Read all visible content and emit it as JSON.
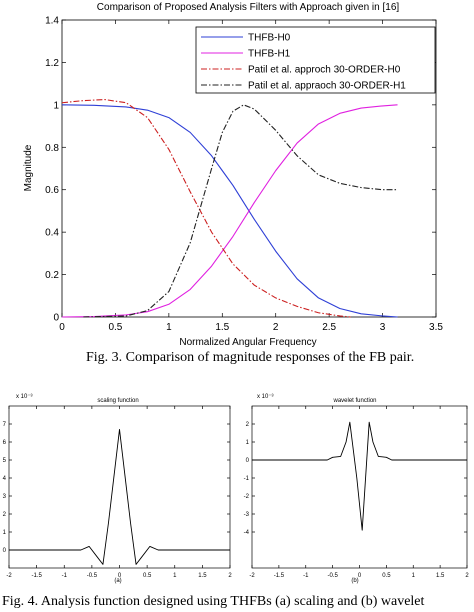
{
  "chart_data": [
    {
      "type": "line",
      "title": "Comparison of Proposed Analysis Filters with Approach given in [16]",
      "xlabel": "Normalized Angular Frequency",
      "ylabel": "Magnitude",
      "xlim": [
        0,
        3.5
      ],
      "ylim": [
        0,
        1.4
      ],
      "xticks": [
        "0",
        "0.5",
        "1",
        "1.5",
        "2",
        "2.5",
        "3",
        "3.5"
      ],
      "yticks": [
        "0",
        "0.2",
        "0.4",
        "0.6",
        "0.8",
        "1",
        "1.2",
        "1.4"
      ],
      "grid": false,
      "legend_position": "top-right",
      "series": [
        {
          "name": "THFB-H0",
          "color": "#2e3fd6",
          "dash": "solid",
          "x": [
            0,
            0.3,
            0.6,
            0.8,
            1.0,
            1.2,
            1.4,
            1.5,
            1.6,
            1.8,
            2.0,
            2.2,
            2.4,
            2.6,
            2.8,
            3.0,
            3.14
          ],
          "y": [
            1.0,
            0.998,
            0.99,
            0.975,
            0.94,
            0.87,
            0.76,
            0.69,
            0.62,
            0.46,
            0.31,
            0.18,
            0.09,
            0.04,
            0.015,
            0.005,
            0.0
          ]
        },
        {
          "name": "THFB-H1",
          "color": "#e020e0",
          "dash": "solid",
          "x": [
            0,
            0.3,
            0.6,
            0.8,
            1.0,
            1.2,
            1.4,
            1.5,
            1.6,
            1.8,
            2.0,
            2.2,
            2.4,
            2.6,
            2.8,
            3.0,
            3.14
          ],
          "y": [
            0.0,
            0.002,
            0.01,
            0.025,
            0.06,
            0.13,
            0.24,
            0.31,
            0.38,
            0.54,
            0.69,
            0.82,
            0.91,
            0.96,
            0.985,
            0.995,
            1.0
          ]
        },
        {
          "name": "Patil et al. approch 30-ORDER-H0",
          "color": "#cc2020",
          "dash": "dashdot",
          "x": [
            0,
            0.2,
            0.4,
            0.6,
            0.8,
            1.0,
            1.2,
            1.4,
            1.6,
            1.8,
            2.0,
            2.2,
            2.4,
            2.6,
            2.7
          ],
          "y": [
            1.01,
            1.02,
            1.025,
            1.01,
            0.94,
            0.79,
            0.59,
            0.4,
            0.25,
            0.15,
            0.09,
            0.05,
            0.02,
            0.005,
            0.0
          ]
        },
        {
          "name": "Patil et al. appraoch 30-ORDER-H1",
          "color": "#222222",
          "dash": "dashdot",
          "x": [
            0.2,
            0.6,
            0.8,
            1.0,
            1.2,
            1.4,
            1.5,
            1.6,
            1.7,
            1.8,
            2.0,
            2.2,
            2.4,
            2.6,
            2.8,
            3.0,
            3.14
          ],
          "y": [
            0.0,
            0.005,
            0.03,
            0.12,
            0.35,
            0.7,
            0.87,
            0.97,
            1.0,
            0.98,
            0.88,
            0.76,
            0.67,
            0.63,
            0.61,
            0.6,
            0.6
          ]
        }
      ]
    },
    {
      "type": "line",
      "title": "scaling function",
      "xlabel": "(a)",
      "ylabel": "",
      "multiplier": "x 10⁻³",
      "xlim": [
        -2,
        2
      ],
      "ylim": [
        -1,
        8
      ],
      "xticks": [
        "-2",
        "-1.5",
        "-1",
        "-0.5",
        "0",
        "0.5",
        "1",
        "1.5",
        "2"
      ],
      "yticks": [
        "0",
        "1",
        "2",
        "3",
        "4",
        "5",
        "6",
        "7"
      ],
      "series": [
        {
          "color": "#000000",
          "x": [
            -2,
            -0.7,
            -0.55,
            -0.4,
            -0.3,
            -0.2,
            0.0,
            0.2,
            0.3,
            0.4,
            0.55,
            0.7,
            2.0
          ],
          "y": [
            0.0,
            0.0,
            0.2,
            -0.4,
            -0.8,
            1.5,
            6.7,
            1.5,
            -0.8,
            -0.4,
            0.2,
            0.0,
            0.0
          ]
        }
      ]
    },
    {
      "type": "line",
      "title": "wavelet function",
      "xlabel": "(b)",
      "ylabel": "",
      "multiplier": "x 10⁻³",
      "xlim": [
        -2,
        2
      ],
      "ylim": [
        -6,
        3
      ],
      "xticks": [
        "-2",
        "-1.5",
        "-1",
        "-0.5",
        "0",
        "0.5",
        "1",
        "1.5",
        "2"
      ],
      "yticks": [
        "-4",
        "-3",
        "-2",
        "-1",
        "0",
        "1",
        "2"
      ],
      "series": [
        {
          "color": "#000000",
          "x": [
            -2,
            -0.6,
            -0.5,
            -0.35,
            -0.25,
            -0.18,
            -0.05,
            0.05,
            0.18,
            0.25,
            0.35,
            0.5,
            0.6,
            2.0
          ],
          "y": [
            0.0,
            0.0,
            0.15,
            0.2,
            1.0,
            2.1,
            -1.0,
            -3.9,
            2.1,
            1.0,
            0.2,
            0.15,
            0.0,
            0.0
          ]
        }
      ]
    }
  ],
  "captions": {
    "fig3": "Fig. 3.   Comparison of magnitude responses of the FB pair.",
    "fig4": "Fig. 4.   Analysis function designed using THFBs (a) scaling and (b) wavelet"
  }
}
